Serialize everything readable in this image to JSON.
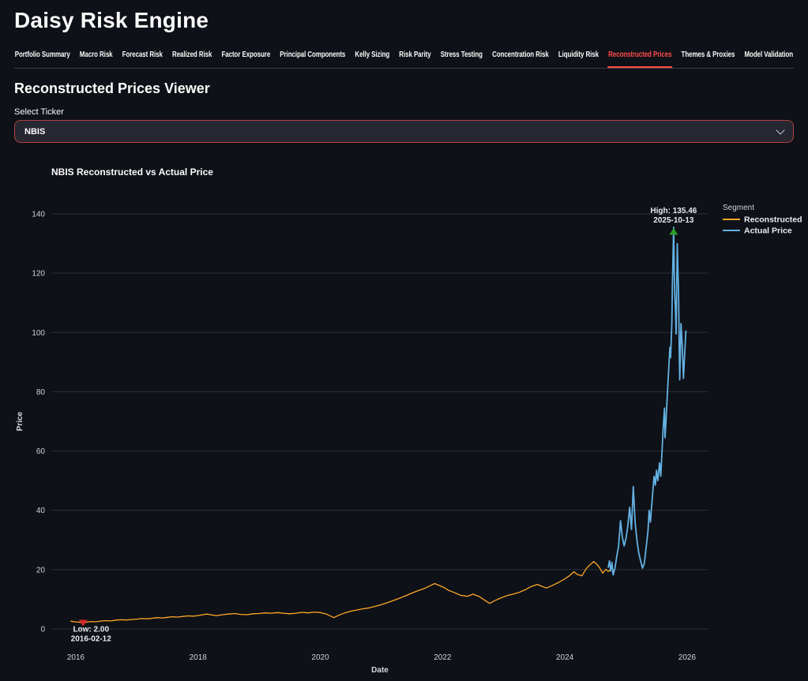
{
  "app": {
    "title": "Daisy Risk Engine"
  },
  "theme": {
    "accent": "#FF4B4B",
    "background": "#0E1117",
    "secondary_background": "#262730",
    "text": "#FAFAFA"
  },
  "tabs": {
    "items": [
      "Portfolio Summary",
      "Macro Risk",
      "Forecast Risk",
      "Realized Risk",
      "Factor Exposure",
      "Principal Components",
      "Kelly Sizing",
      "Risk Parity",
      "Stress Testing",
      "Concentration Risk",
      "Liquidity Risk",
      "Reconstructed Prices",
      "Themes & Proxies",
      "Model Validation"
    ],
    "active": "Reconstructed Prices"
  },
  "viewer": {
    "heading": "Reconstructed Prices Viewer",
    "ticker_label": "Select Ticker",
    "ticker_value": "NBIS"
  },
  "chart_data": {
    "type": "line",
    "title": "NBIS Reconstructed vs Actual Price",
    "xlabel": "Date",
    "ylabel": "Price",
    "legend_title": "Segment",
    "legend_position": "right",
    "grid": "horizontal-only",
    "xlim": [
      2015.6,
      2026.35
    ],
    "ylim": [
      0,
      140
    ],
    "x_ticks": [
      2016,
      2018,
      2020,
      2022,
      2024,
      2026
    ],
    "y_ticks": [
      0,
      20,
      40,
      60,
      80,
      100,
      120,
      140
    ],
    "series": [
      {
        "name": "Reconstructed",
        "color": "#FFA726",
        "width": 1.3,
        "points": [
          [
            2015.92,
            2.6
          ],
          [
            2015.98,
            2.4
          ],
          [
            2016.04,
            2.3
          ],
          [
            2016.08,
            2.2
          ],
          [
            2016.12,
            2.0
          ],
          [
            2016.18,
            2.3
          ],
          [
            2016.25,
            2.5
          ],
          [
            2016.33,
            2.4
          ],
          [
            2016.42,
            2.7
          ],
          [
            2016.5,
            2.8
          ],
          [
            2016.58,
            2.7
          ],
          [
            2016.67,
            3.0
          ],
          [
            2016.75,
            3.1
          ],
          [
            2016.83,
            3.0
          ],
          [
            2016.92,
            3.2
          ],
          [
            2017.0,
            3.3
          ],
          [
            2017.08,
            3.5
          ],
          [
            2017.17,
            3.4
          ],
          [
            2017.25,
            3.6
          ],
          [
            2017.33,
            3.8
          ],
          [
            2017.42,
            3.7
          ],
          [
            2017.5,
            3.9
          ],
          [
            2017.58,
            4.1
          ],
          [
            2017.67,
            4.0
          ],
          [
            2017.75,
            4.2
          ],
          [
            2017.83,
            4.4
          ],
          [
            2017.92,
            4.3
          ],
          [
            2018.0,
            4.5
          ],
          [
            2018.08,
            4.8
          ],
          [
            2018.15,
            5.0
          ],
          [
            2018.22,
            4.7
          ],
          [
            2018.3,
            4.5
          ],
          [
            2018.4,
            4.8
          ],
          [
            2018.5,
            5.0
          ],
          [
            2018.6,
            5.2
          ],
          [
            2018.7,
            4.9
          ],
          [
            2018.8,
            4.8
          ],
          [
            2018.9,
            5.1
          ],
          [
            2019.0,
            5.2
          ],
          [
            2019.1,
            5.4
          ],
          [
            2019.2,
            5.3
          ],
          [
            2019.3,
            5.5
          ],
          [
            2019.4,
            5.3
          ],
          [
            2019.5,
            5.1
          ],
          [
            2019.6,
            5.3
          ],
          [
            2019.7,
            5.6
          ],
          [
            2019.8,
            5.4
          ],
          [
            2019.9,
            5.7
          ],
          [
            2020.0,
            5.5
          ],
          [
            2020.1,
            5.0
          ],
          [
            2020.18,
            4.2
          ],
          [
            2020.22,
            3.8
          ],
          [
            2020.3,
            4.6
          ],
          [
            2020.4,
            5.4
          ],
          [
            2020.5,
            6.0
          ],
          [
            2020.6,
            6.4
          ],
          [
            2020.7,
            6.8
          ],
          [
            2020.8,
            7.1
          ],
          [
            2020.9,
            7.6
          ],
          [
            2021.0,
            8.2
          ],
          [
            2021.1,
            8.9
          ],
          [
            2021.2,
            9.6
          ],
          [
            2021.3,
            10.4
          ],
          [
            2021.4,
            11.2
          ],
          [
            2021.5,
            12.1
          ],
          [
            2021.6,
            12.9
          ],
          [
            2021.7,
            13.6
          ],
          [
            2021.8,
            14.6
          ],
          [
            2021.87,
            15.3
          ],
          [
            2021.95,
            14.6
          ],
          [
            2022.02,
            14.0
          ],
          [
            2022.1,
            13.0
          ],
          [
            2022.2,
            12.2
          ],
          [
            2022.3,
            11.3
          ],
          [
            2022.4,
            11.0
          ],
          [
            2022.5,
            11.7
          ],
          [
            2022.6,
            10.9
          ],
          [
            2022.68,
            9.8
          ],
          [
            2022.77,
            8.6
          ],
          [
            2022.85,
            9.5
          ],
          [
            2022.95,
            10.4
          ],
          [
            2023.05,
            11.2
          ],
          [
            2023.15,
            11.7
          ],
          [
            2023.25,
            12.3
          ],
          [
            2023.35,
            13.2
          ],
          [
            2023.45,
            14.3
          ],
          [
            2023.55,
            15.0
          ],
          [
            2023.62,
            14.4
          ],
          [
            2023.7,
            13.8
          ],
          [
            2023.8,
            14.7
          ],
          [
            2023.9,
            15.7
          ],
          [
            2024.0,
            16.9
          ],
          [
            2024.08,
            18.0
          ],
          [
            2024.15,
            19.3
          ],
          [
            2024.2,
            18.4
          ],
          [
            2024.28,
            17.9
          ],
          [
            2024.35,
            20.3
          ],
          [
            2024.42,
            21.8
          ],
          [
            2024.47,
            22.7
          ],
          [
            2024.52,
            21.9
          ],
          [
            2024.57,
            20.6
          ],
          [
            2024.62,
            18.8
          ],
          [
            2024.67,
            20.1
          ],
          [
            2024.71,
            19.4
          ],
          [
            2024.74,
            19.8
          ]
        ]
      },
      {
        "name": "Actual Price",
        "color": "#64B2E4",
        "width": 1.8,
        "points": [
          [
            2024.71,
            20.8
          ],
          [
            2024.73,
            23.0
          ],
          [
            2024.75,
            19.5
          ],
          [
            2024.77,
            22.5
          ],
          [
            2024.79,
            18.2
          ],
          [
            2024.82,
            20.5
          ],
          [
            2024.85,
            24.5
          ],
          [
            2024.88,
            28.0
          ],
          [
            2024.91,
            36.5
          ],
          [
            2024.94,
            31.0
          ],
          [
            2024.97,
            28.0
          ],
          [
            2025.0,
            30.5
          ],
          [
            2025.03,
            34.5
          ],
          [
            2025.06,
            41.0
          ],
          [
            2025.09,
            33.5
          ],
          [
            2025.12,
            48.0
          ],
          [
            2025.15,
            36.0
          ],
          [
            2025.18,
            30.0
          ],
          [
            2025.21,
            25.5
          ],
          [
            2025.24,
            23.0
          ],
          [
            2025.27,
            20.5
          ],
          [
            2025.3,
            22.0
          ],
          [
            2025.33,
            27.5
          ],
          [
            2025.36,
            33.0
          ],
          [
            2025.38,
            40.0
          ],
          [
            2025.4,
            36.0
          ],
          [
            2025.43,
            44.0
          ],
          [
            2025.46,
            51.5
          ],
          [
            2025.48,
            48.5
          ],
          [
            2025.5,
            53.5
          ],
          [
            2025.52,
            50.0
          ],
          [
            2025.55,
            56.0
          ],
          [
            2025.57,
            51.5
          ],
          [
            2025.59,
            60.0
          ],
          [
            2025.61,
            68.0
          ],
          [
            2025.63,
            74.5
          ],
          [
            2025.64,
            64.5
          ],
          [
            2025.66,
            72.0
          ],
          [
            2025.68,
            80.0
          ],
          [
            2025.7,
            88.0
          ],
          [
            2025.72,
            95.0
          ],
          [
            2025.73,
            91.5
          ],
          [
            2025.75,
            103.0
          ],
          [
            2025.76,
            116.0
          ],
          [
            2025.78,
            135.46
          ],
          [
            2025.79,
            120.0
          ],
          [
            2025.8,
            112.0
          ],
          [
            2025.81,
            108.0
          ],
          [
            2025.82,
            99.5
          ],
          [
            2025.84,
            130.0
          ],
          [
            2025.85,
            121.0
          ],
          [
            2025.86,
            114.0
          ],
          [
            2025.87,
            96.0
          ],
          [
            2025.88,
            84.0
          ],
          [
            2025.9,
            103.0
          ],
          [
            2025.92,
            96.0
          ],
          [
            2025.93,
            90.0
          ],
          [
            2025.94,
            84.5
          ],
          [
            2025.96,
            92.5
          ],
          [
            2025.98,
            100.5
          ]
        ]
      }
    ],
    "annotations": [
      {
        "name": "high",
        "lines": [
          "High: 135.46",
          "2025-10-13"
        ],
        "x": 2025.78,
        "y": 135.46,
        "arrow": "up",
        "color": "#2BA02B"
      },
      {
        "name": "low",
        "lines": [
          "Low: 2.00",
          "2016-02-12"
        ],
        "x": 2016.12,
        "y": 2.0,
        "arrow": "down",
        "color": "#D62728"
      }
    ]
  }
}
